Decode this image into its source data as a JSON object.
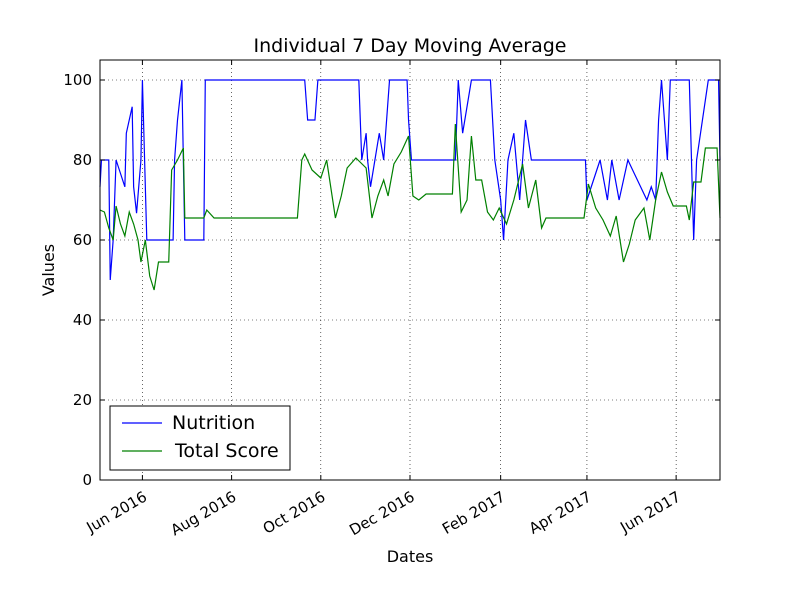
{
  "chart_data": {
    "type": "line",
    "title": "Individual 7 Day Moving Average",
    "xlabel": "Dates",
    "ylabel": "Values",
    "xlim": [
      "2016-05-03",
      "2017-07-01"
    ],
    "ylim": [
      0,
      105
    ],
    "grid": true,
    "legend_position": "lower-left",
    "y_ticks": [
      0,
      20,
      40,
      60,
      80,
      100
    ],
    "x_ticks": [
      {
        "date": "2016-06-01",
        "label": "Jun 2016"
      },
      {
        "date": "2016-08-01",
        "label": "Aug 2016"
      },
      {
        "date": "2016-10-01",
        "label": "Oct 2016"
      },
      {
        "date": "2016-12-01",
        "label": "Dec 2016"
      },
      {
        "date": "2017-02-01",
        "label": "Feb 2017"
      },
      {
        "date": "2017-04-01",
        "label": "Apr 2017"
      },
      {
        "date": "2017-06-01",
        "label": "Jun 2017"
      }
    ],
    "series": [
      {
        "name": "Nutrition",
        "color": "#0000ff",
        "points": [
          [
            "2016-05-03",
            73.3
          ],
          [
            "2016-05-04",
            80
          ],
          [
            "2016-05-09",
            80
          ],
          [
            "2016-05-10",
            50
          ],
          [
            "2016-05-12",
            60
          ],
          [
            "2016-05-14",
            80
          ],
          [
            "2016-05-20",
            73.3
          ],
          [
            "2016-05-21",
            86.7
          ],
          [
            "2016-05-25",
            93.3
          ],
          [
            "2016-05-26",
            73.3
          ],
          [
            "2016-05-28",
            66.7
          ],
          [
            "2016-05-31",
            80
          ],
          [
            "2016-06-01",
            100
          ],
          [
            "2016-06-04",
            60
          ],
          [
            "2016-06-22",
            60
          ],
          [
            "2016-06-23",
            80
          ],
          [
            "2016-06-25",
            90
          ],
          [
            "2016-06-28",
            100
          ],
          [
            "2016-06-30",
            60
          ],
          [
            "2016-07-13",
            60
          ],
          [
            "2016-07-14",
            100
          ],
          [
            "2016-09-20",
            100
          ],
          [
            "2016-09-22",
            90
          ],
          [
            "2016-09-27",
            90
          ],
          [
            "2016-09-29",
            100
          ],
          [
            "2016-10-27",
            100
          ],
          [
            "2016-10-29",
            80
          ],
          [
            "2016-11-01",
            86.7
          ],
          [
            "2016-11-02",
            80
          ],
          [
            "2016-11-04",
            73.3
          ],
          [
            "2016-11-07",
            80
          ],
          [
            "2016-11-10",
            86.7
          ],
          [
            "2016-11-13",
            80
          ],
          [
            "2016-11-17",
            100
          ],
          [
            "2016-11-29",
            100
          ],
          [
            "2016-11-30",
            90
          ],
          [
            "2016-12-02",
            80
          ],
          [
            "2017-01-01",
            80
          ],
          [
            "2017-01-03",
            100
          ],
          [
            "2017-01-06",
            86.7
          ],
          [
            "2017-01-12",
            100
          ],
          [
            "2017-01-25",
            100
          ],
          [
            "2017-01-28",
            80
          ],
          [
            "2017-02-01",
            70
          ],
          [
            "2017-02-03",
            60
          ],
          [
            "2017-02-06",
            80
          ],
          [
            "2017-02-10",
            86.7
          ],
          [
            "2017-02-14",
            70
          ],
          [
            "2017-02-18",
            90
          ],
          [
            "2017-02-22",
            80
          ],
          [
            "2017-03-31",
            80
          ],
          [
            "2017-04-01",
            70
          ],
          [
            "2017-04-10",
            80
          ],
          [
            "2017-04-15",
            70
          ],
          [
            "2017-04-18",
            80
          ],
          [
            "2017-04-23",
            70
          ],
          [
            "2017-04-29",
            80
          ],
          [
            "2017-05-12",
            70
          ],
          [
            "2017-05-15",
            73.3
          ],
          [
            "2017-05-18",
            70
          ],
          [
            "2017-05-20",
            90
          ],
          [
            "2017-05-22",
            100
          ],
          [
            "2017-05-26",
            80
          ],
          [
            "2017-05-28",
            100
          ],
          [
            "2017-06-10",
            100
          ],
          [
            "2017-06-13",
            60
          ],
          [
            "2017-06-15",
            80
          ],
          [
            "2017-06-23",
            100
          ],
          [
            "2017-06-30",
            100
          ],
          [
            "2017-07-01",
            80
          ]
        ]
      },
      {
        "name": "Total Score",
        "color": "#008000",
        "points": [
          [
            "2016-05-03",
            67.5
          ],
          [
            "2016-05-06",
            67
          ],
          [
            "2016-05-09",
            63
          ],
          [
            "2016-05-12",
            60
          ],
          [
            "2016-05-14",
            68.5
          ],
          [
            "2016-05-17",
            64
          ],
          [
            "2016-05-20",
            61
          ],
          [
            "2016-05-23",
            67
          ],
          [
            "2016-05-26",
            64
          ],
          [
            "2016-05-29",
            60
          ],
          [
            "2016-05-31",
            54.5
          ],
          [
            "2016-06-03",
            60
          ],
          [
            "2016-06-06",
            51
          ],
          [
            "2016-06-09",
            47.5
          ],
          [
            "2016-06-12",
            54.5
          ],
          [
            "2016-06-19",
            54.5
          ],
          [
            "2016-06-21",
            77.5
          ],
          [
            "2016-06-25",
            80
          ],
          [
            "2016-06-29",
            83
          ],
          [
            "2016-06-30",
            65.5
          ],
          [
            "2016-07-13",
            65.5
          ],
          [
            "2016-07-15",
            67.5
          ],
          [
            "2016-07-20",
            65.5
          ],
          [
            "2016-09-15",
            65.5
          ],
          [
            "2016-09-18",
            80
          ],
          [
            "2016-09-20",
            81.5
          ],
          [
            "2016-09-25",
            77.5
          ],
          [
            "2016-10-01",
            75.5
          ],
          [
            "2016-10-05",
            80
          ],
          [
            "2016-10-11",
            65.5
          ],
          [
            "2016-10-15",
            71
          ],
          [
            "2016-10-19",
            78
          ],
          [
            "2016-10-25",
            80.5
          ],
          [
            "2016-11-01",
            78
          ],
          [
            "2016-11-05",
            65.5
          ],
          [
            "2016-11-09",
            71
          ],
          [
            "2016-11-13",
            75
          ],
          [
            "2016-11-16",
            71
          ],
          [
            "2016-11-20",
            79
          ],
          [
            "2016-11-25",
            82
          ],
          [
            "2016-11-30",
            86
          ],
          [
            "2016-12-03",
            71
          ],
          [
            "2016-12-07",
            70
          ],
          [
            "2016-12-12",
            71.5
          ],
          [
            "2016-12-20",
            71.5
          ],
          [
            "2016-12-27",
            71.5
          ],
          [
            "2016-12-30",
            71.5
          ],
          [
            "2017-01-01",
            89
          ],
          [
            "2017-01-05",
            67
          ],
          [
            "2017-01-09",
            70
          ],
          [
            "2017-01-12",
            86
          ],
          [
            "2017-01-15",
            75
          ],
          [
            "2017-01-19",
            75
          ],
          [
            "2017-01-23",
            67
          ],
          [
            "2017-01-27",
            65
          ],
          [
            "2017-01-31",
            68
          ],
          [
            "2017-02-05",
            64
          ],
          [
            "2017-02-10",
            70
          ],
          [
            "2017-02-16",
            79
          ],
          [
            "2017-02-20",
            68
          ],
          [
            "2017-02-25",
            75
          ],
          [
            "2017-03-01",
            63
          ],
          [
            "2017-03-04",
            65.5
          ],
          [
            "2017-03-30",
            65.5
          ],
          [
            "2017-04-02",
            74
          ],
          [
            "2017-04-07",
            68
          ],
          [
            "2017-04-12",
            65
          ],
          [
            "2017-04-17",
            61
          ],
          [
            "2017-04-21",
            66
          ],
          [
            "2017-04-26",
            54.5
          ],
          [
            "2017-04-30",
            59
          ],
          [
            "2017-05-04",
            65
          ],
          [
            "2017-05-10",
            68
          ],
          [
            "2017-05-14",
            60
          ],
          [
            "2017-05-18",
            70
          ],
          [
            "2017-05-22",
            77
          ],
          [
            "2017-05-26",
            72
          ],
          [
            "2017-05-30",
            68.5
          ],
          [
            "2017-06-08",
            68.5
          ],
          [
            "2017-06-10",
            65
          ],
          [
            "2017-06-13",
            74.5
          ],
          [
            "2017-06-18",
            74.5
          ],
          [
            "2017-06-21",
            83
          ],
          [
            "2017-06-29",
            83
          ],
          [
            "2017-07-01",
            65.5
          ]
        ]
      }
    ]
  }
}
